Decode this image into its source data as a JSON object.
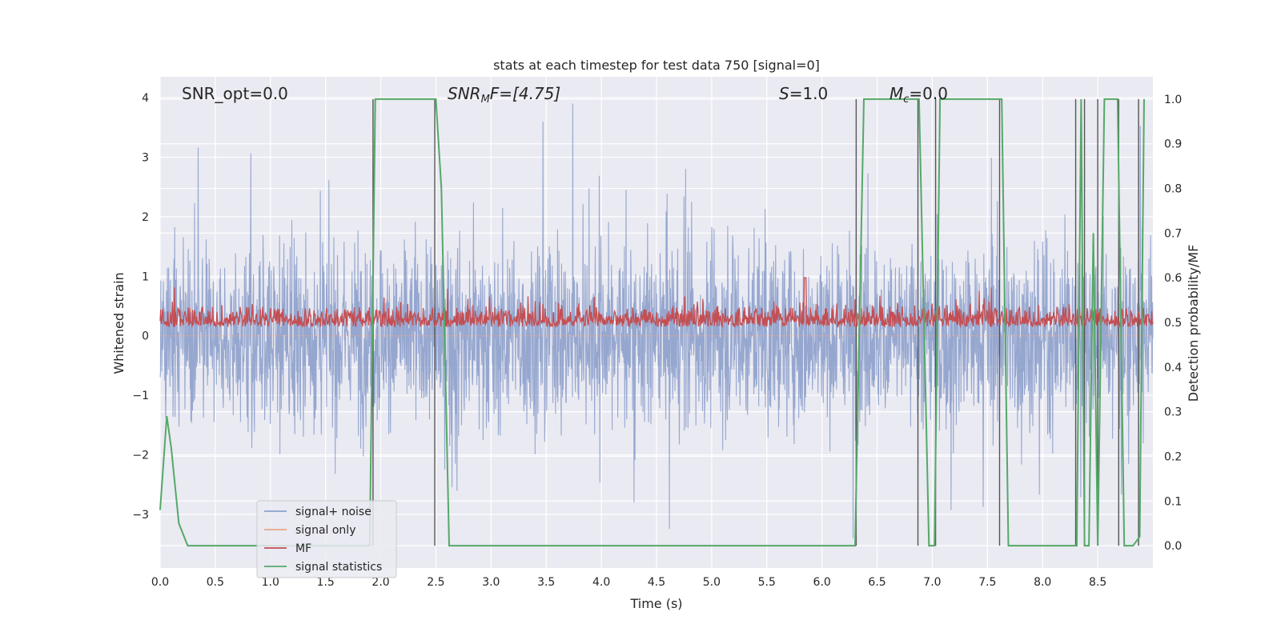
{
  "chart_data": {
    "type": "line",
    "title": "stats at each timestep for test data 750 [signal=0]",
    "xlabel": "Time (s)",
    "ylabel": "Whitened strain",
    "ylabel_right": "Detection probability/MF",
    "xlim": [
      0,
      9
    ],
    "ylim": [
      -3.9,
      4.35
    ],
    "ylim_right": [
      -0.05,
      1.05
    ],
    "x_ticks": [
      0.0,
      0.5,
      1.0,
      1.5,
      2.0,
      2.5,
      3.0,
      3.5,
      4.0,
      4.5,
      5.0,
      5.5,
      6.0,
      6.5,
      7.0,
      7.5,
      8.0,
      8.5
    ],
    "x_tick_labels": [
      "0.0",
      "0.5",
      "1.0",
      "1.5",
      "2.0",
      "2.5",
      "3.0",
      "3.5",
      "4.0",
      "4.5",
      "5.0",
      "5.5",
      "6.0",
      "6.5",
      "7.0",
      "7.5",
      "8.0",
      "8.5"
    ],
    "y_ticks": [
      -3,
      -2,
      -1,
      0,
      1,
      2,
      3,
      4
    ],
    "y_tick_labels": [
      "−3",
      "−2",
      "−1",
      "0",
      "1",
      "2",
      "3",
      "4"
    ],
    "y_right_ticks": [
      0.0,
      0.1,
      0.2,
      0.3,
      0.4,
      0.5,
      0.6,
      0.7,
      0.8,
      0.9,
      1.0
    ],
    "y_right_tick_labels": [
      "0.0",
      "0.1",
      "0.2",
      "0.3",
      "0.4",
      "0.5",
      "0.6",
      "0.7",
      "0.8",
      "0.9",
      "1.0"
    ],
    "grid": true,
    "legend_position": "lower-left",
    "annotations": {
      "snr_opt": "SNR_opt=0.0",
      "snr_mf_main": "SNR",
      "snr_mf_sub": "M",
      "snr_mf_rest": "F=[4.75]",
      "s_main": "S",
      "s_rest": "=1.0",
      "mc_main": "M",
      "mc_sub": "c",
      "mc_rest": "=0.0"
    },
    "series": [
      {
        "name": "signal+ noise",
        "color": "#8da0cb",
        "axis": "left",
        "description_values": {
          "approx_range": [
            -3.4,
            3.9
          ],
          "approx_envelope": 2.3
        }
      },
      {
        "name": "signal only",
        "color": "#e8a58a",
        "axis": "left",
        "values_const": 0.0
      },
      {
        "name": "MF",
        "color": "#c44e52",
        "axis": "right",
        "approx_baseline": 0.5,
        "approx_range": [
          0.46,
          0.62
        ]
      },
      {
        "name": "signal statistics",
        "color": "#55a868",
        "axis": "right",
        "x": [
          0.0,
          0.06,
          0.1,
          0.17,
          0.25,
          0.3,
          1.9,
          1.95,
          2.0,
          2.5,
          2.55,
          2.62,
          6.3,
          6.38,
          6.88,
          6.97,
          7.02,
          7.07,
          7.12,
          7.63,
          7.69,
          8.31,
          8.35,
          8.38,
          8.42,
          8.46,
          8.5,
          8.56,
          8.68,
          8.74,
          8.82,
          8.88,
          8.92
        ],
        "y": [
          0.08,
          0.29,
          0.22,
          0.05,
          0.0,
          0.0,
          0.0,
          1.0,
          1.0,
          1.0,
          0.8,
          0.0,
          0.0,
          1.0,
          1.0,
          0.0,
          0.0,
          1.0,
          1.0,
          1.0,
          0.0,
          0.0,
          1.0,
          0.0,
          0.0,
          0.7,
          0.0,
          1.0,
          1.0,
          0.0,
          0.0,
          0.02,
          1.0
        ]
      }
    ],
    "vertical_markers_x": [
      1.93,
      2.49,
      6.31,
      6.87,
      7.03,
      7.61,
      8.3,
      8.38,
      8.5,
      8.69,
      8.87
    ],
    "colors": {
      "plot_bg": "#eaeaf2",
      "grid": "#ffffff",
      "marker": "#555555",
      "text": "#262626"
    }
  }
}
